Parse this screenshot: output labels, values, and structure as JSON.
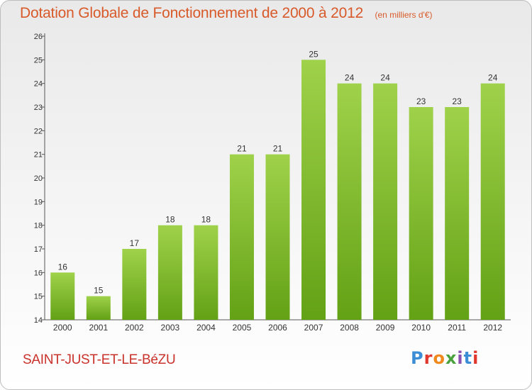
{
  "header": {
    "title": "Dotation Globale de Fonctionnement de 2000 à 2012",
    "subtitle": "(en milliers d'€)"
  },
  "footer": {
    "commune": "SAINT-JUST-ET-LE-BéZU",
    "logo_text": "Proxiti",
    "logo_colors": [
      "#3b8ed6",
      "#e0362c",
      "#f08a1e",
      "#4aa23c",
      "#8a4fb0",
      "#3b8ed6",
      "#e0362c"
    ]
  },
  "chart_data": {
    "type": "bar",
    "categories": [
      "2000",
      "2001",
      "2002",
      "2003",
      "2004",
      "2005",
      "2006",
      "2007",
      "2008",
      "2009",
      "2010",
      "2011",
      "2012"
    ],
    "values": [
      16,
      15,
      17,
      18,
      18,
      21,
      21,
      25,
      24,
      24,
      23,
      23,
      24
    ],
    "value_labels": [
      "16",
      "15",
      "17",
      "18",
      "18",
      "21",
      "21",
      "25",
      "24",
      "24",
      "23",
      "23",
      "24"
    ],
    "ylim": [
      14,
      26
    ],
    "yticks": [
      "14",
      "15",
      "16",
      "17",
      "18",
      "19",
      "20",
      "21",
      "22",
      "23",
      "24",
      "25",
      "26"
    ],
    "grid": false,
    "bar_color_top": "#9fd24a",
    "bar_color_bottom": "#63a115",
    "text_color": "#333333"
  }
}
